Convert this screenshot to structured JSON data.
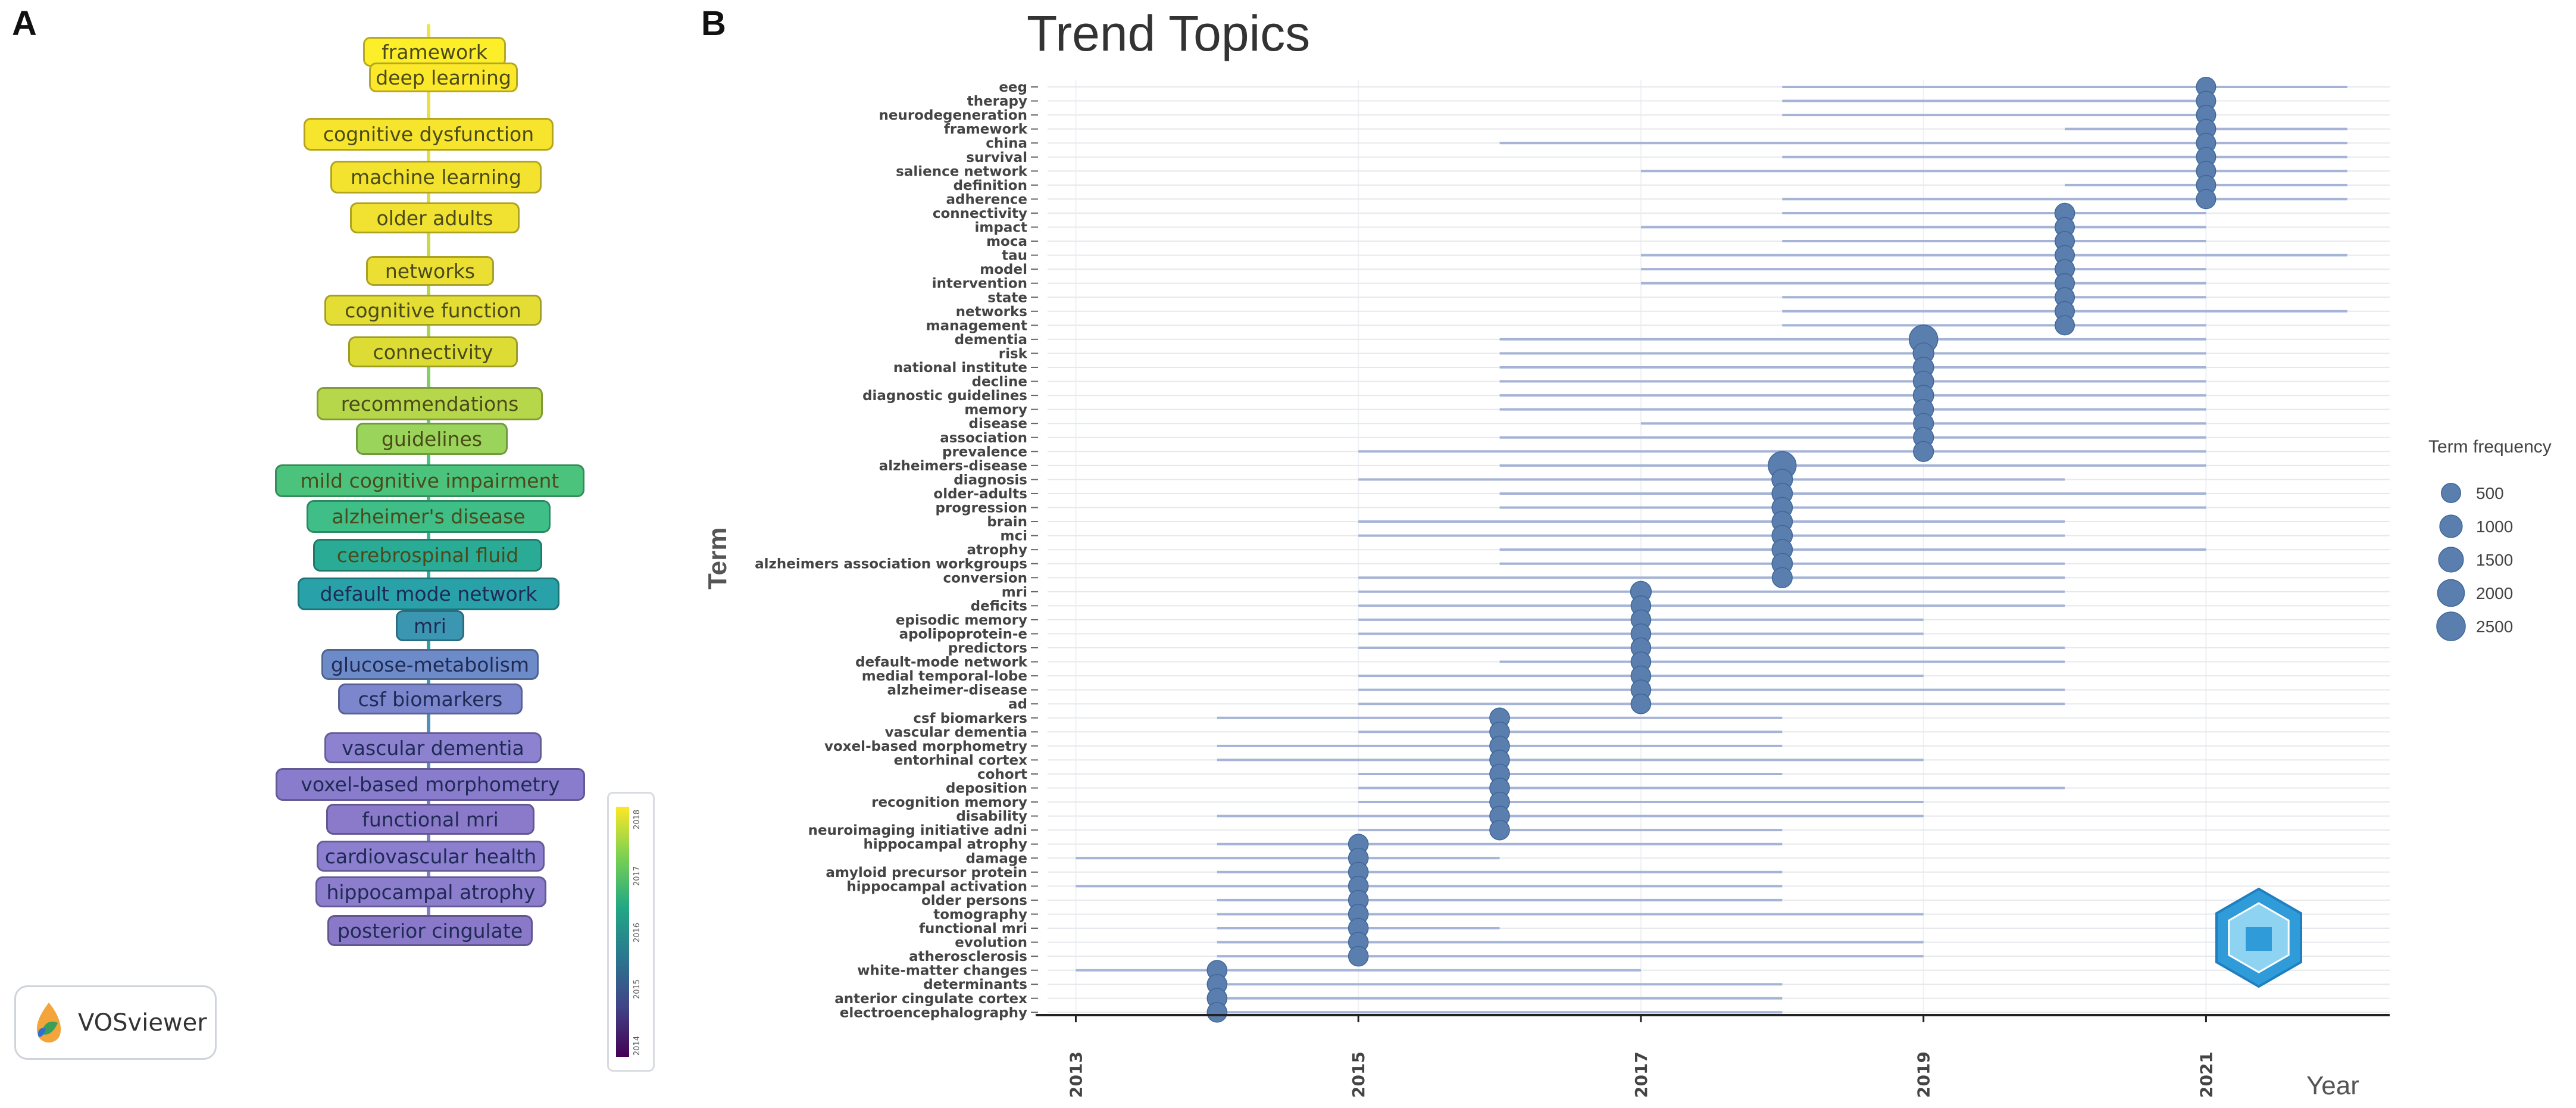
{
  "panel_a": {
    "letter": "A",
    "software_name": "VOSviewer",
    "labels": [
      {
        "text": "framework",
        "color": "#fdee2a"
      },
      {
        "text": "deep learning",
        "color": "#fbe82a"
      },
      {
        "text": "cognitive dysfunction",
        "color": "#f7e42c"
      },
      {
        "text": "machine learning",
        "color": "#f4e32e"
      },
      {
        "text": "older adults",
        "color": "#f1e130"
      },
      {
        "text": "networks",
        "color": "#ecdf34"
      },
      {
        "text": "cognitive function",
        "color": "#e4dd33"
      },
      {
        "text": "connectivity",
        "color": "#dcdc34"
      },
      {
        "text": "recommendations",
        "color": "#b7d74a"
      },
      {
        "text": "guidelines",
        "color": "#9bd45a"
      },
      {
        "text": "mild cognitive impairment",
        "color": "#4cc37c"
      },
      {
        "text": "alzheimer's disease",
        "color": "#3fbe88"
      },
      {
        "text": "cerebrospinal fluid",
        "color": "#2aab95"
      },
      {
        "text": "default mode network",
        "color": "#28a2a8"
      },
      {
        "text": "mri",
        "color": "#3b96b2"
      },
      {
        "text": "glucose-metabolism",
        "color": "#6d8bc9"
      },
      {
        "text": "csf biomarkers",
        "color": "#7c86cd"
      },
      {
        "text": "vascular dementia",
        "color": "#8c82d0"
      },
      {
        "text": "voxel-based morphometry",
        "color": "#8a7ccd"
      },
      {
        "text": "functional mri",
        "color": "#8b79c9"
      },
      {
        "text": "cardiovascular health",
        "color": "#8d7fd0"
      },
      {
        "text": "hippocampal atrophy",
        "color": "#8c7dcd"
      },
      {
        "text": "posterior cingulate",
        "color": "#8a78c8"
      }
    ]
  },
  "panel_b": {
    "letter": "B",
    "title": "Trend Topics"
  },
  "chart_data": {
    "type": "scatter",
    "title": "Trend Topics",
    "xlabel": "Year",
    "ylabel": "Term",
    "xlim": [
      2012.8,
      2022.3
    ],
    "x_ticks": [
      2013,
      2015,
      2017,
      2019,
      2021
    ],
    "grid": true,
    "legend": {
      "title": "Term frequency",
      "placement": "right",
      "sizes": [
        500,
        1000,
        1500,
        2000,
        2500
      ]
    },
    "point_color": "#5a7fae",
    "line_color": "#a5b3d6",
    "terms": [
      {
        "term": "eeg",
        "start": 2018,
        "median": 2021,
        "end": 2022,
        "freq": 500
      },
      {
        "term": "therapy",
        "start": 2018,
        "median": 2021,
        "end": 2021,
        "freq": 500
      },
      {
        "term": "neurodegeneration",
        "start": 2018,
        "median": 2021,
        "end": 2021,
        "freq": 500
      },
      {
        "term": "framework",
        "start": 2020,
        "median": 2021,
        "end": 2022,
        "freq": 500
      },
      {
        "term": "china",
        "start": 2016,
        "median": 2021,
        "end": 2022,
        "freq": 500
      },
      {
        "term": "survival",
        "start": 2018,
        "median": 2021,
        "end": 2022,
        "freq": 500
      },
      {
        "term": "salience network",
        "start": 2017,
        "median": 2021,
        "end": 2022,
        "freq": 500
      },
      {
        "term": "definition",
        "start": 2020,
        "median": 2021,
        "end": 2022,
        "freq": 500
      },
      {
        "term": "adherence",
        "start": 2018,
        "median": 2021,
        "end": 2022,
        "freq": 500
      },
      {
        "term": "connectivity",
        "start": 2018,
        "median": 2020,
        "end": 2021,
        "freq": 550
      },
      {
        "term": "impact",
        "start": 2017,
        "median": 2020,
        "end": 2021,
        "freq": 500
      },
      {
        "term": "moca",
        "start": 2018,
        "median": 2020,
        "end": 2021,
        "freq": 500
      },
      {
        "term": "tau",
        "start": 2017,
        "median": 2020,
        "end": 2022,
        "freq": 500
      },
      {
        "term": "model",
        "start": 2017,
        "median": 2020,
        "end": 2021,
        "freq": 500
      },
      {
        "term": "intervention",
        "start": 2017,
        "median": 2020,
        "end": 2021,
        "freq": 500
      },
      {
        "term": "state",
        "start": 2018,
        "median": 2020,
        "end": 2021,
        "freq": 500
      },
      {
        "term": "networks",
        "start": 2018,
        "median": 2020,
        "end": 2022,
        "freq": 500
      },
      {
        "term": "management",
        "start": 2018,
        "median": 2020,
        "end": 2021,
        "freq": 500
      },
      {
        "term": "dementia",
        "start": 2016,
        "median": 2019,
        "end": 2021,
        "freq": 2500
      },
      {
        "term": "risk",
        "start": 2016,
        "median": 2019,
        "end": 2021,
        "freq": 700
      },
      {
        "term": "national institute",
        "start": 2016,
        "median": 2019,
        "end": 2021,
        "freq": 650
      },
      {
        "term": "decline",
        "start": 2016,
        "median": 2019,
        "end": 2021,
        "freq": 650
      },
      {
        "term": "diagnostic guidelines",
        "start": 2016,
        "median": 2019,
        "end": 2021,
        "freq": 650
      },
      {
        "term": "memory",
        "start": 2016,
        "median": 2019,
        "end": 2021,
        "freq": 600
      },
      {
        "term": "disease",
        "start": 2017,
        "median": 2019,
        "end": 2021,
        "freq": 600
      },
      {
        "term": "association",
        "start": 2016,
        "median": 2019,
        "end": 2021,
        "freq": 600
      },
      {
        "term": "prevalence",
        "start": 2015,
        "median": 2019,
        "end": 2021,
        "freq": 600
      },
      {
        "term": "alzheimers-disease",
        "start": 2016,
        "median": 2018,
        "end": 2021,
        "freq": 2300
      },
      {
        "term": "diagnosis",
        "start": 2015,
        "median": 2018,
        "end": 2020,
        "freq": 700
      },
      {
        "term": "older-adults",
        "start": 2016,
        "median": 2018,
        "end": 2021,
        "freq": 650
      },
      {
        "term": "progression",
        "start": 2016,
        "median": 2018,
        "end": 2021,
        "freq": 650
      },
      {
        "term": "brain",
        "start": 2015,
        "median": 2018,
        "end": 2020,
        "freq": 650
      },
      {
        "term": "mci",
        "start": 2015,
        "median": 2018,
        "end": 2020,
        "freq": 650
      },
      {
        "term": "atrophy",
        "start": 2016,
        "median": 2018,
        "end": 2021,
        "freq": 650
      },
      {
        "term": "alzheimers association workgroups",
        "start": 2016,
        "median": 2018,
        "end": 2020,
        "freq": 650
      },
      {
        "term": "conversion",
        "start": 2015,
        "median": 2018,
        "end": 2020,
        "freq": 600
      },
      {
        "term": "mri",
        "start": 2015,
        "median": 2017,
        "end": 2020,
        "freq": 700
      },
      {
        "term": "deficits",
        "start": 2015,
        "median": 2017,
        "end": 2020,
        "freq": 550
      },
      {
        "term": "episodic memory",
        "start": 2015,
        "median": 2017,
        "end": 2019,
        "freq": 550
      },
      {
        "term": "apolipoprotein-e",
        "start": 2015,
        "median": 2017,
        "end": 2019,
        "freq": 550
      },
      {
        "term": "predictors",
        "start": 2015,
        "median": 2017,
        "end": 2020,
        "freq": 550
      },
      {
        "term": "default-mode network",
        "start": 2016,
        "median": 2017,
        "end": 2020,
        "freq": 550
      },
      {
        "term": "medial temporal-lobe",
        "start": 2015,
        "median": 2017,
        "end": 2019,
        "freq": 550
      },
      {
        "term": "alzheimer-disease",
        "start": 2015,
        "median": 2017,
        "end": 2020,
        "freq": 550
      },
      {
        "term": "ad",
        "start": 2015,
        "median": 2017,
        "end": 2020,
        "freq": 550
      },
      {
        "term": "csf biomarkers",
        "start": 2014,
        "median": 2016,
        "end": 2018,
        "freq": 550
      },
      {
        "term": "vascular dementia",
        "start": 2015,
        "median": 2016,
        "end": 2018,
        "freq": 550
      },
      {
        "term": "voxel-based morphometry",
        "start": 2014,
        "median": 2016,
        "end": 2018,
        "freq": 550
      },
      {
        "term": "entorhinal cortex",
        "start": 2014,
        "median": 2016,
        "end": 2019,
        "freq": 550
      },
      {
        "term": "cohort",
        "start": 2015,
        "median": 2016,
        "end": 2018,
        "freq": 550
      },
      {
        "term": "deposition",
        "start": 2015,
        "median": 2016,
        "end": 2020,
        "freq": 550
      },
      {
        "term": "recognition memory",
        "start": 2015,
        "median": 2016,
        "end": 2019,
        "freq": 550
      },
      {
        "term": "disability",
        "start": 2014,
        "median": 2016,
        "end": 2019,
        "freq": 550
      },
      {
        "term": "neuroimaging initiative adni",
        "start": 2015,
        "median": 2016,
        "end": 2018,
        "freq": 550
      },
      {
        "term": "hippocampal atrophy",
        "start": 2014,
        "median": 2015,
        "end": 2018,
        "freq": 550
      },
      {
        "term": "damage",
        "start": 2013,
        "median": 2015,
        "end": 2016,
        "freq": 550
      },
      {
        "term": "amyloid precursor protein",
        "start": 2014,
        "median": 2015,
        "end": 2018,
        "freq": 550
      },
      {
        "term": "hippocampal activation",
        "start": 2013,
        "median": 2015,
        "end": 2018,
        "freq": 550
      },
      {
        "term": "older persons",
        "start": 2014,
        "median": 2015,
        "end": 2018,
        "freq": 550
      },
      {
        "term": "tomography",
        "start": 2014,
        "median": 2015,
        "end": 2019,
        "freq": 550
      },
      {
        "term": "functional mri",
        "start": 2014,
        "median": 2015,
        "end": 2016,
        "freq": 550
      },
      {
        "term": "evolution",
        "start": 2014,
        "median": 2015,
        "end": 2019,
        "freq": 550
      },
      {
        "term": "atherosclerosis",
        "start": 2014,
        "median": 2015,
        "end": 2019,
        "freq": 550
      },
      {
        "term": "white-matter changes",
        "start": 2013,
        "median": 2014,
        "end": 2017,
        "freq": 550
      },
      {
        "term": "determinants",
        "start": 2014,
        "median": 2014,
        "end": 2018,
        "freq": 550
      },
      {
        "term": "anterior cingulate cortex",
        "start": 2014,
        "median": 2014,
        "end": 2018,
        "freq": 550
      },
      {
        "term": "electroencephalography",
        "start": 2014,
        "median": 2014,
        "end": 2018,
        "freq": 550
      }
    ]
  }
}
